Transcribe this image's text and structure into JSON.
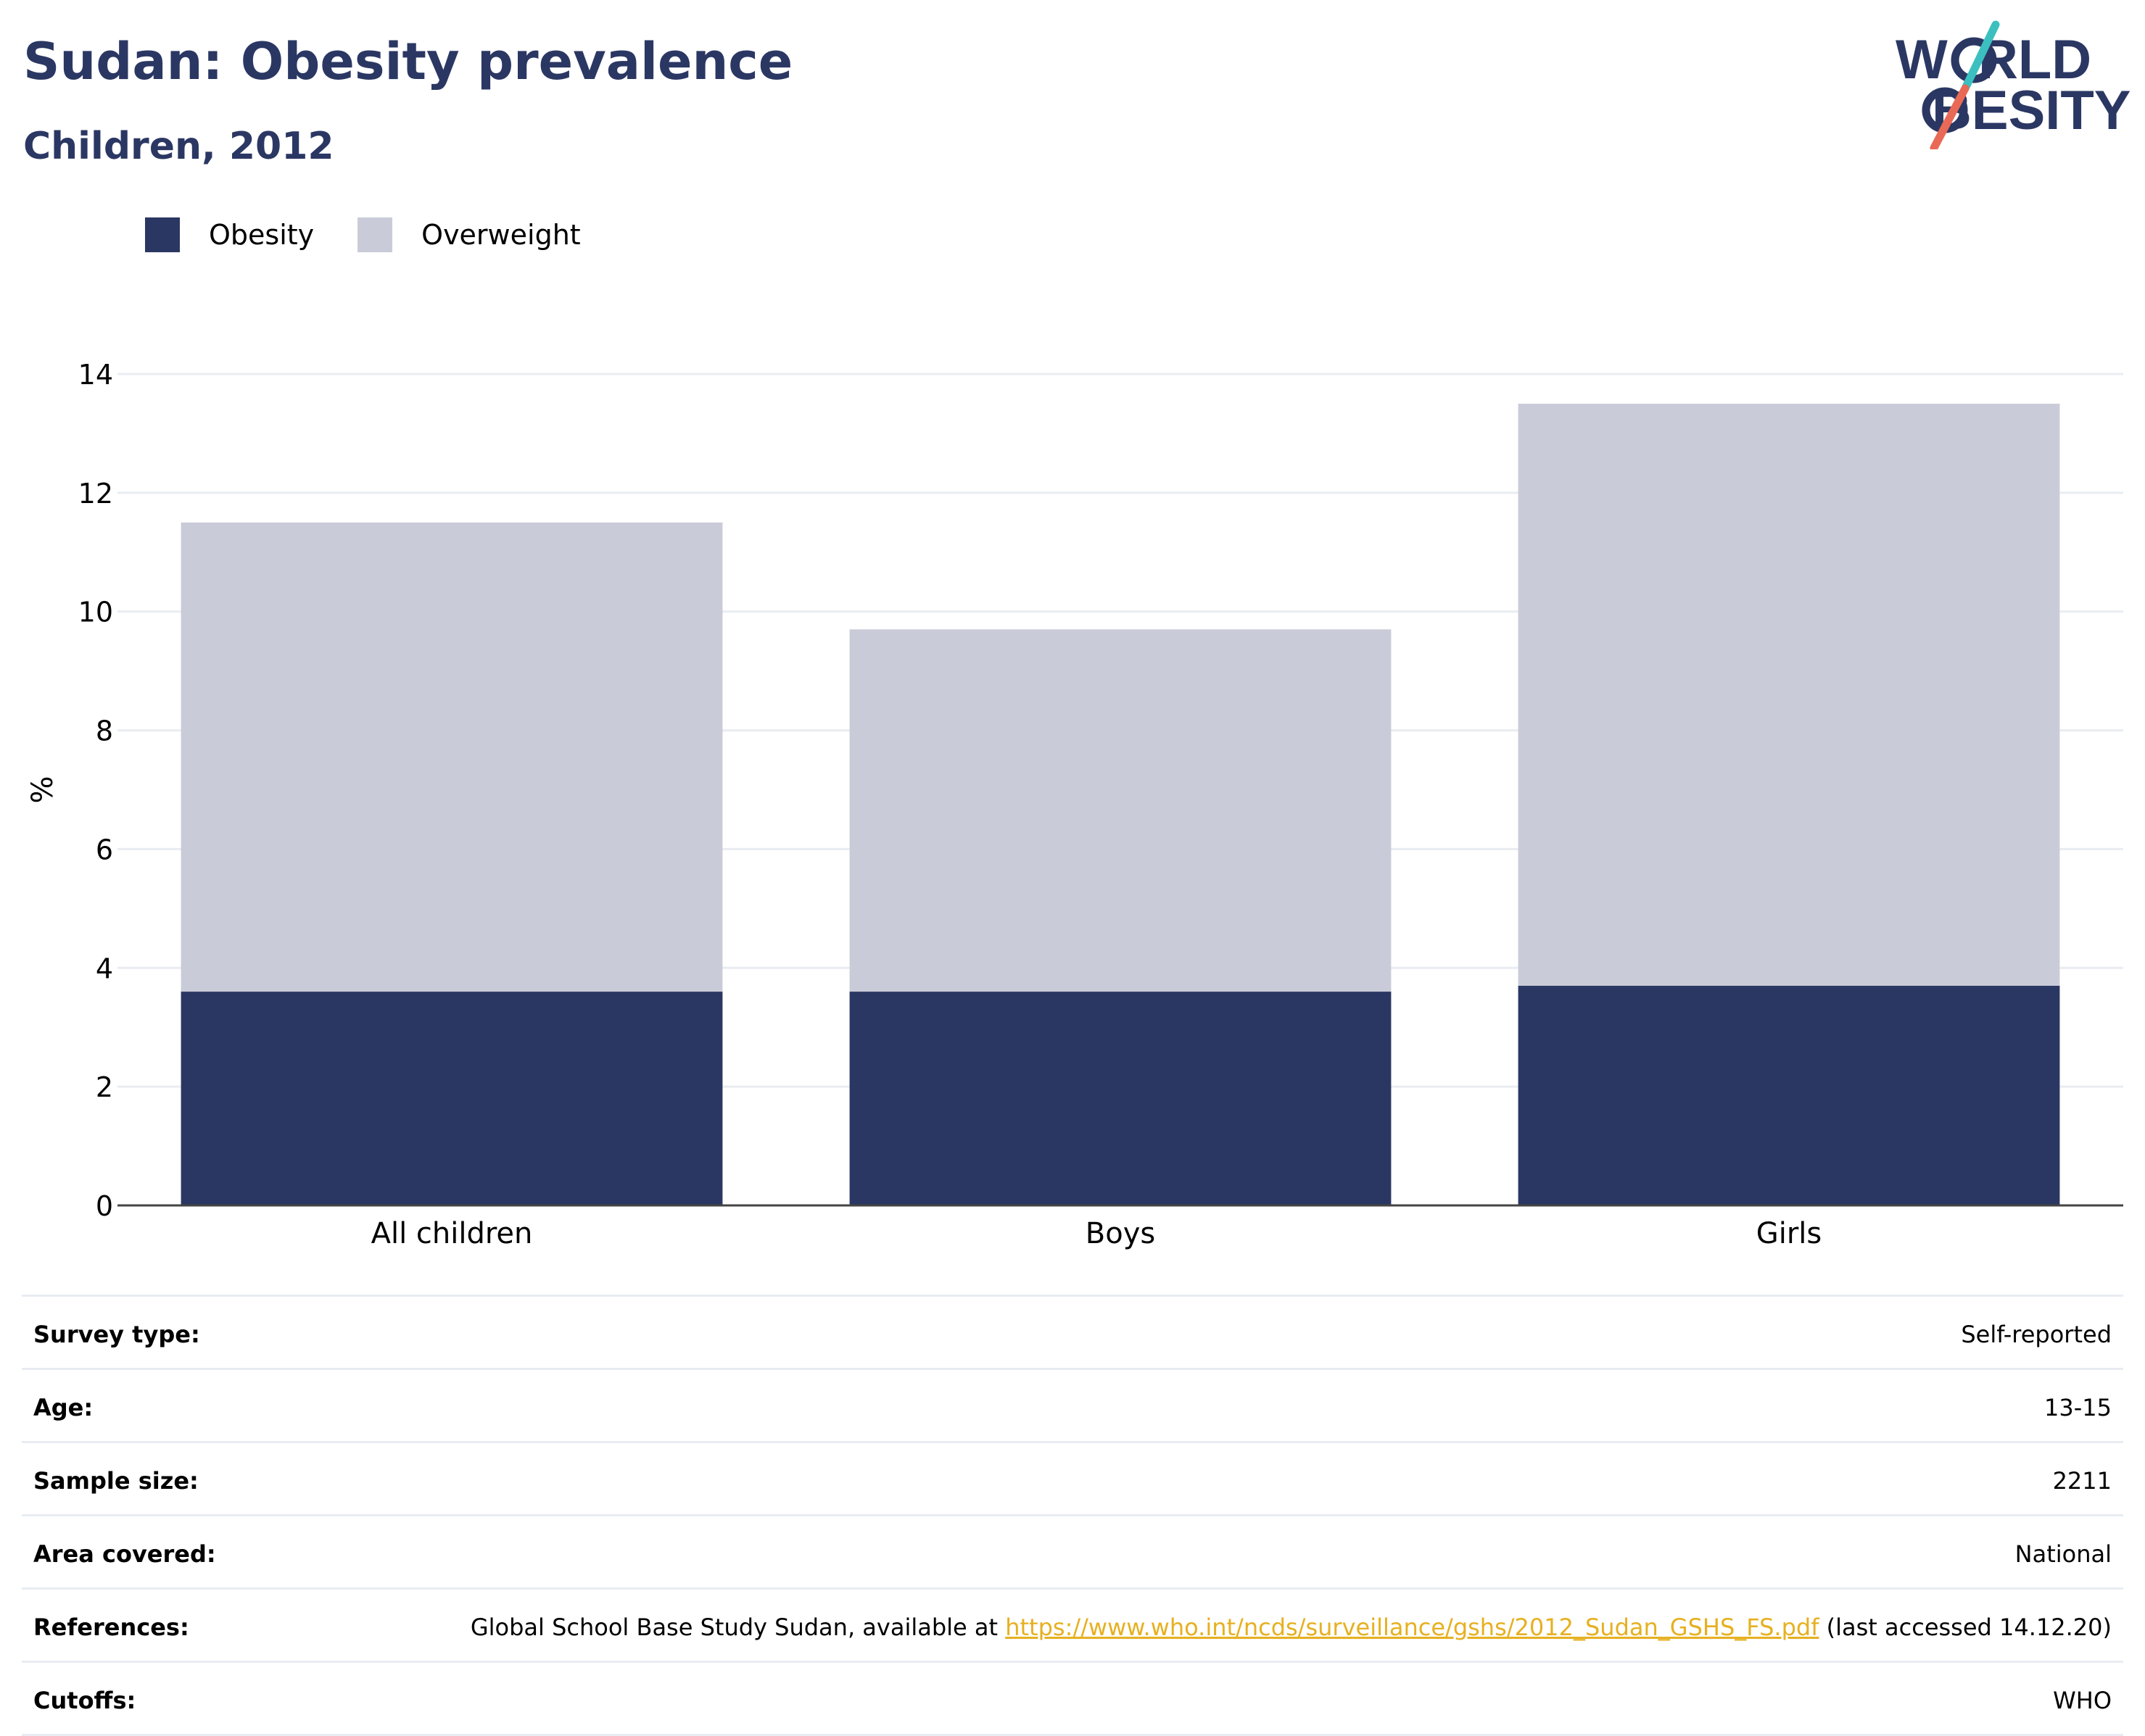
{
  "header": {
    "title": "Sudan: Obesity prevalence",
    "subtitle": "Children, 2012"
  },
  "logo": {
    "line1": "W  RLD",
    "line2": "BESITY",
    "slash_colors": [
      "#3bbfbf",
      "#e86a56"
    ],
    "text_color": "#2b3763"
  },
  "chart_data": {
    "type": "bar",
    "stacked": true,
    "categories": [
      "All children",
      "Boys",
      "Girls"
    ],
    "series": [
      {
        "name": "Obesity",
        "color": "#2b3763",
        "values": [
          3.6,
          3.6,
          3.7
        ]
      },
      {
        "name": "Overweight",
        "color": "#c9ccd8",
        "values": [
          7.9,
          6.1,
          9.8
        ]
      }
    ],
    "ylabel": "%",
    "xlabel": "",
    "ylim": [
      0,
      14
    ],
    "yticks": [
      0,
      2,
      4,
      6,
      8,
      10,
      12,
      14
    ],
    "grid": true,
    "legend_position": "top-left"
  },
  "survey": {
    "rows": [
      {
        "key": "Survey type:",
        "value": "Self-reported"
      },
      {
        "key": "Age:",
        "value": "13-15"
      },
      {
        "key": "Sample size:",
        "value": "2211"
      },
      {
        "key": "Area covered:",
        "value": "National"
      },
      {
        "key": "References:",
        "value_prefix": "Global School Base Study Sudan, available at ",
        "link": "https://www.who.int/ncds/surveillance/gshs/2012_Sudan_GSHS_FS.pdf",
        "value_suffix": " (last accessed 14.12.20)"
      },
      {
        "key": "Cutoffs:",
        "value": "WHO"
      }
    ]
  }
}
